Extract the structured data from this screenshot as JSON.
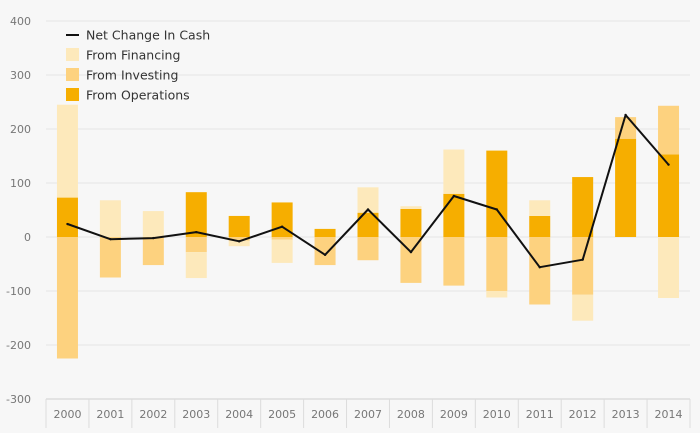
{
  "chart_data": {
    "type": "bar",
    "stacked": true,
    "categories": [
      "2000",
      "2001",
      "2002",
      "2003",
      "2004",
      "2005",
      "2006",
      "2007",
      "2008",
      "2009",
      "2010",
      "2011",
      "2012",
      "2013",
      "2014"
    ],
    "series": [
      {
        "name": "From Operations",
        "kind": "bar",
        "color": "#f6ae00",
        "values": [
          73,
          0,
          0,
          83,
          39,
          64,
          15,
          45,
          52,
          80,
          160,
          39,
          111,
          182,
          153
        ]
      },
      {
        "name": "From Investing",
        "kind": "bar",
        "color": "#fdd27f",
        "values": [
          -225,
          -75,
          -52,
          -28,
          -7,
          -5,
          -52,
          -43,
          -85,
          -90,
          -100,
          -125,
          -107,
          40,
          90
        ]
      },
      {
        "name": "From Financing",
        "kind": "bar",
        "color": "#fde9bb",
        "values": [
          172,
          68,
          48,
          -48,
          -10,
          -43,
          0,
          47,
          5,
          82,
          -12,
          29,
          -48,
          0,
          -113
        ]
      },
      {
        "name": "Net Change In Cash",
        "kind": "line",
        "color": "#111111",
        "values": [
          24,
          -4,
          -2,
          9,
          -8,
          19,
          -33,
          51,
          -28,
          76,
          51,
          -56,
          -42,
          226,
          134
        ]
      }
    ],
    "yticks": [
      -300,
      -200,
      -100,
      0,
      100,
      200,
      300,
      400
    ],
    "ylim": [
      -300,
      400
    ],
    "title": "",
    "xlabel": "",
    "ylabel": "",
    "grid": true,
    "legend": {
      "placement": "top-left",
      "entries": [
        "Net Change In Cash",
        "From Financing",
        "From Investing",
        "From Operations"
      ]
    }
  }
}
